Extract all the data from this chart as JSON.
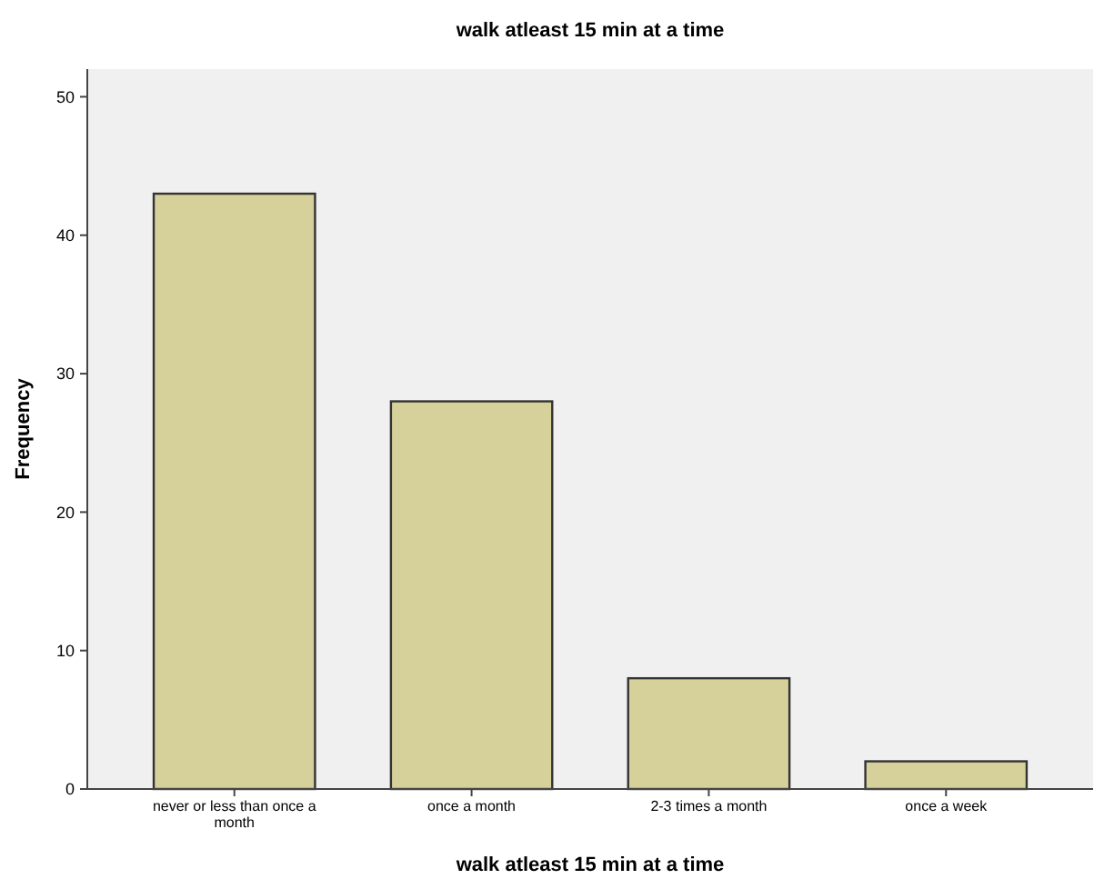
{
  "chart_data": {
    "type": "bar",
    "title": "walk atleast 15 min at a time",
    "xlabel": "walk atleast 15 min at a time",
    "ylabel": "Frequency",
    "categories": [
      "never or less than once a month",
      "once a month",
      "2-3 times a month",
      "once a week"
    ],
    "values": [
      43,
      28,
      8,
      2
    ],
    "color": "#d6d09a",
    "ylim": [
      0,
      52
    ],
    "yticks": [
      0,
      10,
      20,
      30,
      40,
      50
    ],
    "grid": false
  }
}
